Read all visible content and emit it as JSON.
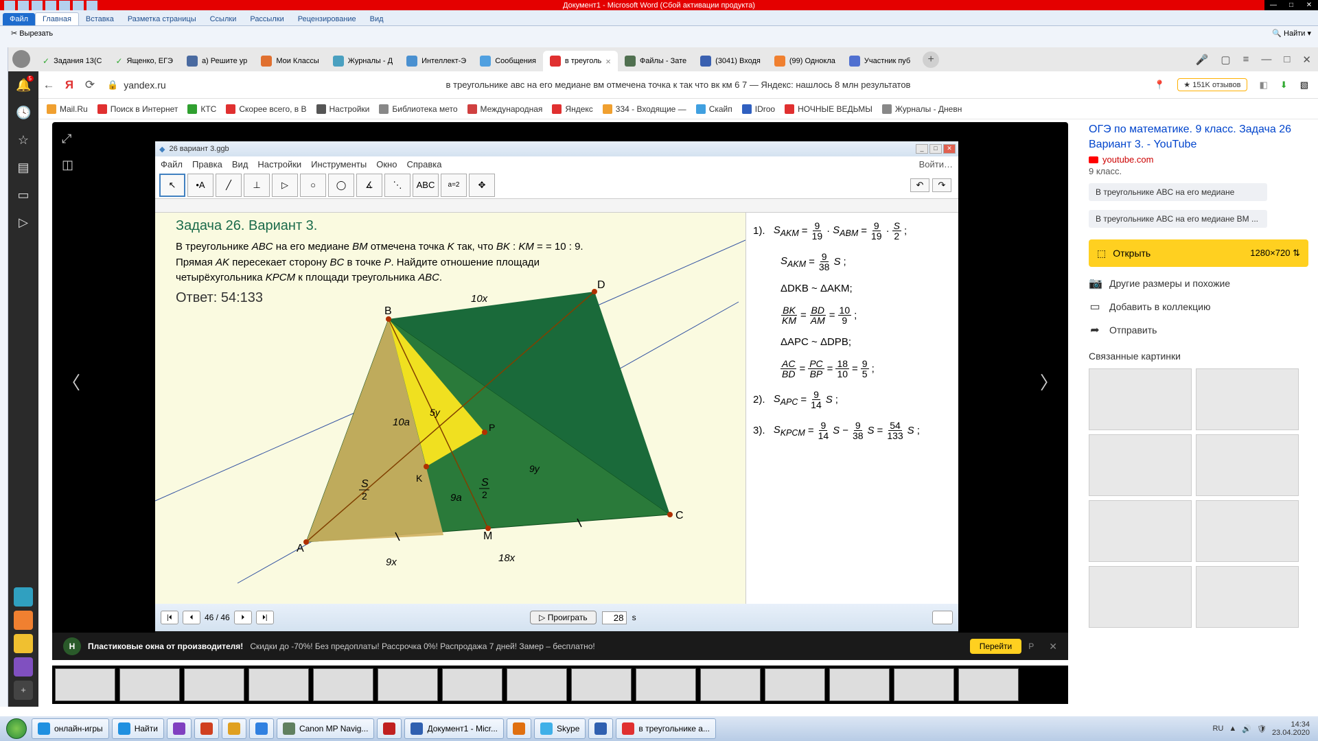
{
  "word": {
    "title": "Документ1 - Microsoft Word (Сбой активации продукта)",
    "tabs": {
      "file": "Файл",
      "home": "Главная",
      "insert": "Вставка",
      "layout": "Разметка страницы",
      "refs": "Ссылки",
      "mail": "Рассылки",
      "review": "Рецензирование",
      "view": "Вид"
    },
    "cut": "Вырезать",
    "find": "Найти"
  },
  "browser": {
    "tabs": [
      {
        "label": "Задания 13(С",
        "color": "#4caf50",
        "check": true
      },
      {
        "label": "Ященко, ЕГЭ",
        "color": "#4caf50",
        "check": true
      },
      {
        "label": "a) Решите ур",
        "color": "#4a6aa0"
      },
      {
        "label": "Мои Классы",
        "color": "#e07030"
      },
      {
        "label": "Журналы - Д",
        "color": "#4aa0c0"
      },
      {
        "label": "Интеллект-Э",
        "color": "#4a90d0"
      },
      {
        "label": "Сообщения",
        "color": "#50a0e0"
      },
      {
        "label": "в треуголь",
        "color": "#e03030",
        "active": true
      },
      {
        "label": "Файлы - Зате",
        "color": "#507050"
      },
      {
        "label": "(3041) Входя",
        "color": "#3a60b0"
      },
      {
        "label": "(99) Однокла",
        "color": "#f08030"
      },
      {
        "label": "Участник пуб",
        "color": "#5070d0"
      }
    ],
    "url": "yandex.ru",
    "search_title": "в треугольнике авс на его медиане вм отмечена точка к так что вк км 6 7 — Яндекс: нашлось 8 млн результатов",
    "reviews": "★ 151K отзывов",
    "bookmarks": [
      {
        "label": "Mail.Ru",
        "color": "#f0a030"
      },
      {
        "label": "Поиск в Интернет",
        "color": "#e03030"
      },
      {
        "label": "КТС",
        "color": "#30a030"
      },
      {
        "label": "Скорее всего, в В",
        "color": "#e03030"
      },
      {
        "label": "Настройки",
        "color": "#555"
      },
      {
        "label": "Библиотека мето",
        "color": "#888"
      },
      {
        "label": "Международная",
        "color": "#d04040"
      },
      {
        "label": "Яндекс",
        "color": "#e03030"
      },
      {
        "label": "334 - Входящие —",
        "color": "#f0a030"
      },
      {
        "label": "Скайп",
        "color": "#40a0e0"
      },
      {
        "label": "IDroo",
        "color": "#3060c0"
      },
      {
        "label": "НОЧНЫЕ ВЕДЬМЫ",
        "color": "#e03030"
      },
      {
        "label": "Журналы - Дневн",
        "color": "#888"
      }
    ]
  },
  "ggb": {
    "file_title": "26 вариант 3.ggb",
    "menu": [
      "Файл",
      "Правка",
      "Вид",
      "Настройки",
      "Инструменты",
      "Окно",
      "Справка"
    ],
    "login": "Войти…",
    "task_title": "Задача 26. Вариант 3.",
    "problem": "В треугольнике ABC на его медиане BM отмечена точка K так, что BK : KM = = 10 : 9. Прямая AK пересекает сторону BC в точке P. Найдите отношение площади четырёхугольника KPCM к площади треугольника ABC.",
    "answer": "Ответ: 54:133",
    "labels": {
      "A": "A",
      "B": "B",
      "C": "C",
      "D": "D",
      "M": "M",
      "K": "K",
      "P": "P",
      "ten_x": "10x",
      "ten_a": "10a",
      "nine_a": "9a",
      "nine_x": "9x",
      "eighteen_x": "18x",
      "five_y": "5y",
      "nine_y": "9y"
    },
    "pager": "46 / 46",
    "play": "▷ Проиграть",
    "play_val": "28",
    "play_unit": "s",
    "eq1_num": "1).",
    "eq2": "ΔDKB ~ ΔAKM;",
    "eq4": "ΔAPC ~ ΔDPB;",
    "eq6_num": "2).",
    "eq7_num": "3).",
    "colors": {
      "bg": "#fafae0",
      "tri1": "#2a7a3a",
      "tri2": "#cfb060",
      "yellow": "#f0e020",
      "green2": "#1a6a3a"
    }
  },
  "right": {
    "title": "ОГЭ по математике. 9 класс. Задача 26 Вариант 3. - YouTube",
    "source": "youtube.com",
    "class": "9 класс.",
    "chip1": "В треугольнике ABC на его медиане",
    "chip2": "В треугольнике ABC на его медиане BM ...",
    "open": "Открыть",
    "resolution": "1280×720",
    "sizes": "Другие размеры и похожие",
    "add": "Добавить в коллекцию",
    "send": "Отправить",
    "related": "Связанные картинки"
  },
  "ad": {
    "headline": "Пластиковые окна от производителя!",
    "text": "Скидки до -70%! Без предоплаты! Рассрочка 0%! Распродажа 7 дней! Замер – бесплатно!",
    "go": "Перейти",
    "p": "Р"
  },
  "taskbar": {
    "items": [
      {
        "label": "онлайн-игры",
        "color": "#2090e0"
      },
      {
        "label": "Найти",
        "color": "#2090e0"
      },
      {
        "label": "",
        "color": "#8040c0"
      },
      {
        "label": "",
        "color": "#d04020"
      },
      {
        "label": "",
        "color": "#e0a020"
      },
      {
        "label": "",
        "color": "#3080e0"
      },
      {
        "label": "Canon MP Navig...",
        "color": "#608060"
      },
      {
        "label": "",
        "color": "#c02020"
      },
      {
        "label": "Документ1 - Micr...",
        "color": "#3060b0"
      },
      {
        "label": "",
        "color": "#e07010"
      },
      {
        "label": "Skype",
        "color": "#40b0e8"
      },
      {
        "label": "",
        "color": "#3060b0"
      },
      {
        "label": "в треугольнике a...",
        "color": "#e03030"
      }
    ],
    "lang": "RU",
    "time": "14:34",
    "date": "23.04.2020"
  }
}
